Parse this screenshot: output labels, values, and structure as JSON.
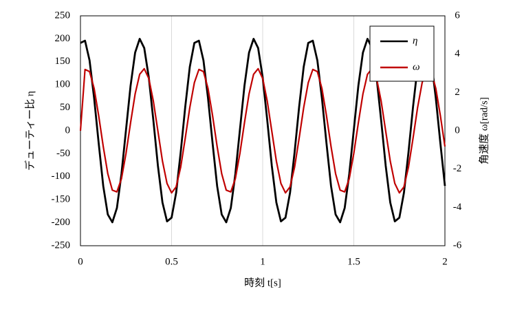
{
  "chart_data": {
    "type": "line",
    "xlabel": "時刻 t[s]",
    "ylabel": "デューティー比 η",
    "y2label": "角速度 ω[rad/s]",
    "x": [
      0,
      0.025,
      0.05,
      0.075,
      0.1,
      0.125,
      0.15,
      0.175,
      0.2,
      0.225,
      0.25,
      0.275,
      0.3,
      0.325,
      0.35,
      0.375,
      0.4,
      0.425,
      0.45,
      0.475,
      0.5,
      0.525,
      0.55,
      0.575,
      0.6,
      0.625,
      0.65,
      0.675,
      0.7,
      0.725,
      0.75,
      0.775,
      0.8,
      0.825,
      0.85,
      0.875,
      0.9,
      0.925,
      0.95,
      0.975,
      1,
      1.025,
      1.05,
      1.075,
      1.1,
      1.125,
      1.15,
      1.175,
      1.2,
      1.225,
      1.25,
      1.275,
      1.3,
      1.325,
      1.35,
      1.375,
      1.4,
      1.425,
      1.45,
      1.475,
      1.5,
      1.525,
      1.55,
      1.575,
      1.6,
      1.625,
      1.65,
      1.675,
      1.7,
      1.725,
      1.75,
      1.775,
      1.8,
      1.825,
      1.85,
      1.875,
      1.9,
      1.925,
      1.95,
      1.975,
      2
    ],
    "series": [
      {
        "name": "η",
        "color": "#000000",
        "values": [
          191,
          196,
          153,
          71,
          -27,
          -120,
          -182,
          -199,
          -168,
          -94,
          2,
          98,
          170,
          200,
          180,
          116,
          23,
          -76,
          -156,
          -197,
          -189,
          -135,
          -47,
          52,
          139,
          191,
          196,
          153,
          71,
          -27,
          -120,
          -182,
          -199,
          -168,
          -94,
          2,
          98,
          170,
          200,
          180,
          116,
          23,
          -76,
          -156,
          -197,
          -189,
          -135,
          -47,
          52,
          139,
          191,
          196,
          153,
          71,
          -27,
          -120,
          -182,
          -199,
          -168,
          -94,
          2,
          98,
          170,
          200,
          180,
          116,
          23,
          -76,
          -156,
          -197,
          -189,
          -135,
          -47,
          52,
          139,
          191,
          196,
          153,
          71,
          -27,
          -120
        ]
      },
      {
        "name": "ω",
        "color": "#c00000",
        "axis": "y2",
        "values": [
          0,
          3.2,
          3.09,
          2.21,
          0.79,
          -0.82,
          -2.24,
          -3.1,
          -3.19,
          -2.5,
          -1.18,
          0.42,
          1.92,
          2.95,
          3.24,
          2.73,
          1.55,
          -0.02,
          -1.58,
          -2.75,
          -3.24,
          -2.93,
          -1.9,
          -0.39,
          1.21,
          2.51,
          3.2,
          3.09,
          2.21,
          0.79,
          -0.82,
          -2.24,
          -3.1,
          -3.19,
          -2.5,
          -1.18,
          0.42,
          1.92,
          2.95,
          3.24,
          2.73,
          1.55,
          -0.02,
          -1.58,
          -2.75,
          -3.24,
          -2.93,
          -1.9,
          -0.39,
          1.21,
          2.51,
          3.2,
          3.09,
          2.21,
          0.79,
          -0.82,
          -2.24,
          -3.1,
          -3.19,
          -2.5,
          -1.18,
          0.42,
          1.92,
          2.95,
          3.24,
          2.73,
          1.55,
          -0.02,
          -1.58,
          -2.75,
          -3.24,
          -2.93,
          -1.9,
          -0.39,
          1.21,
          2.51,
          3.2,
          3.09,
          2.21,
          0.79,
          -0.82
        ]
      }
    ],
    "xlim": [
      0,
      2
    ],
    "xticks": [
      0,
      0.5,
      1,
      1.5,
      2
    ],
    "ylim": [
      -250,
      250
    ],
    "yticks": [
      -250,
      -200,
      -150,
      -100,
      -50,
      0,
      50,
      100,
      150,
      200,
      250
    ],
    "y2lim": [
      -6,
      6
    ],
    "y2ticks": [
      -6,
      -4,
      -2,
      0,
      2,
      4,
      6
    ],
    "grid": "x",
    "legend": "upper right"
  }
}
